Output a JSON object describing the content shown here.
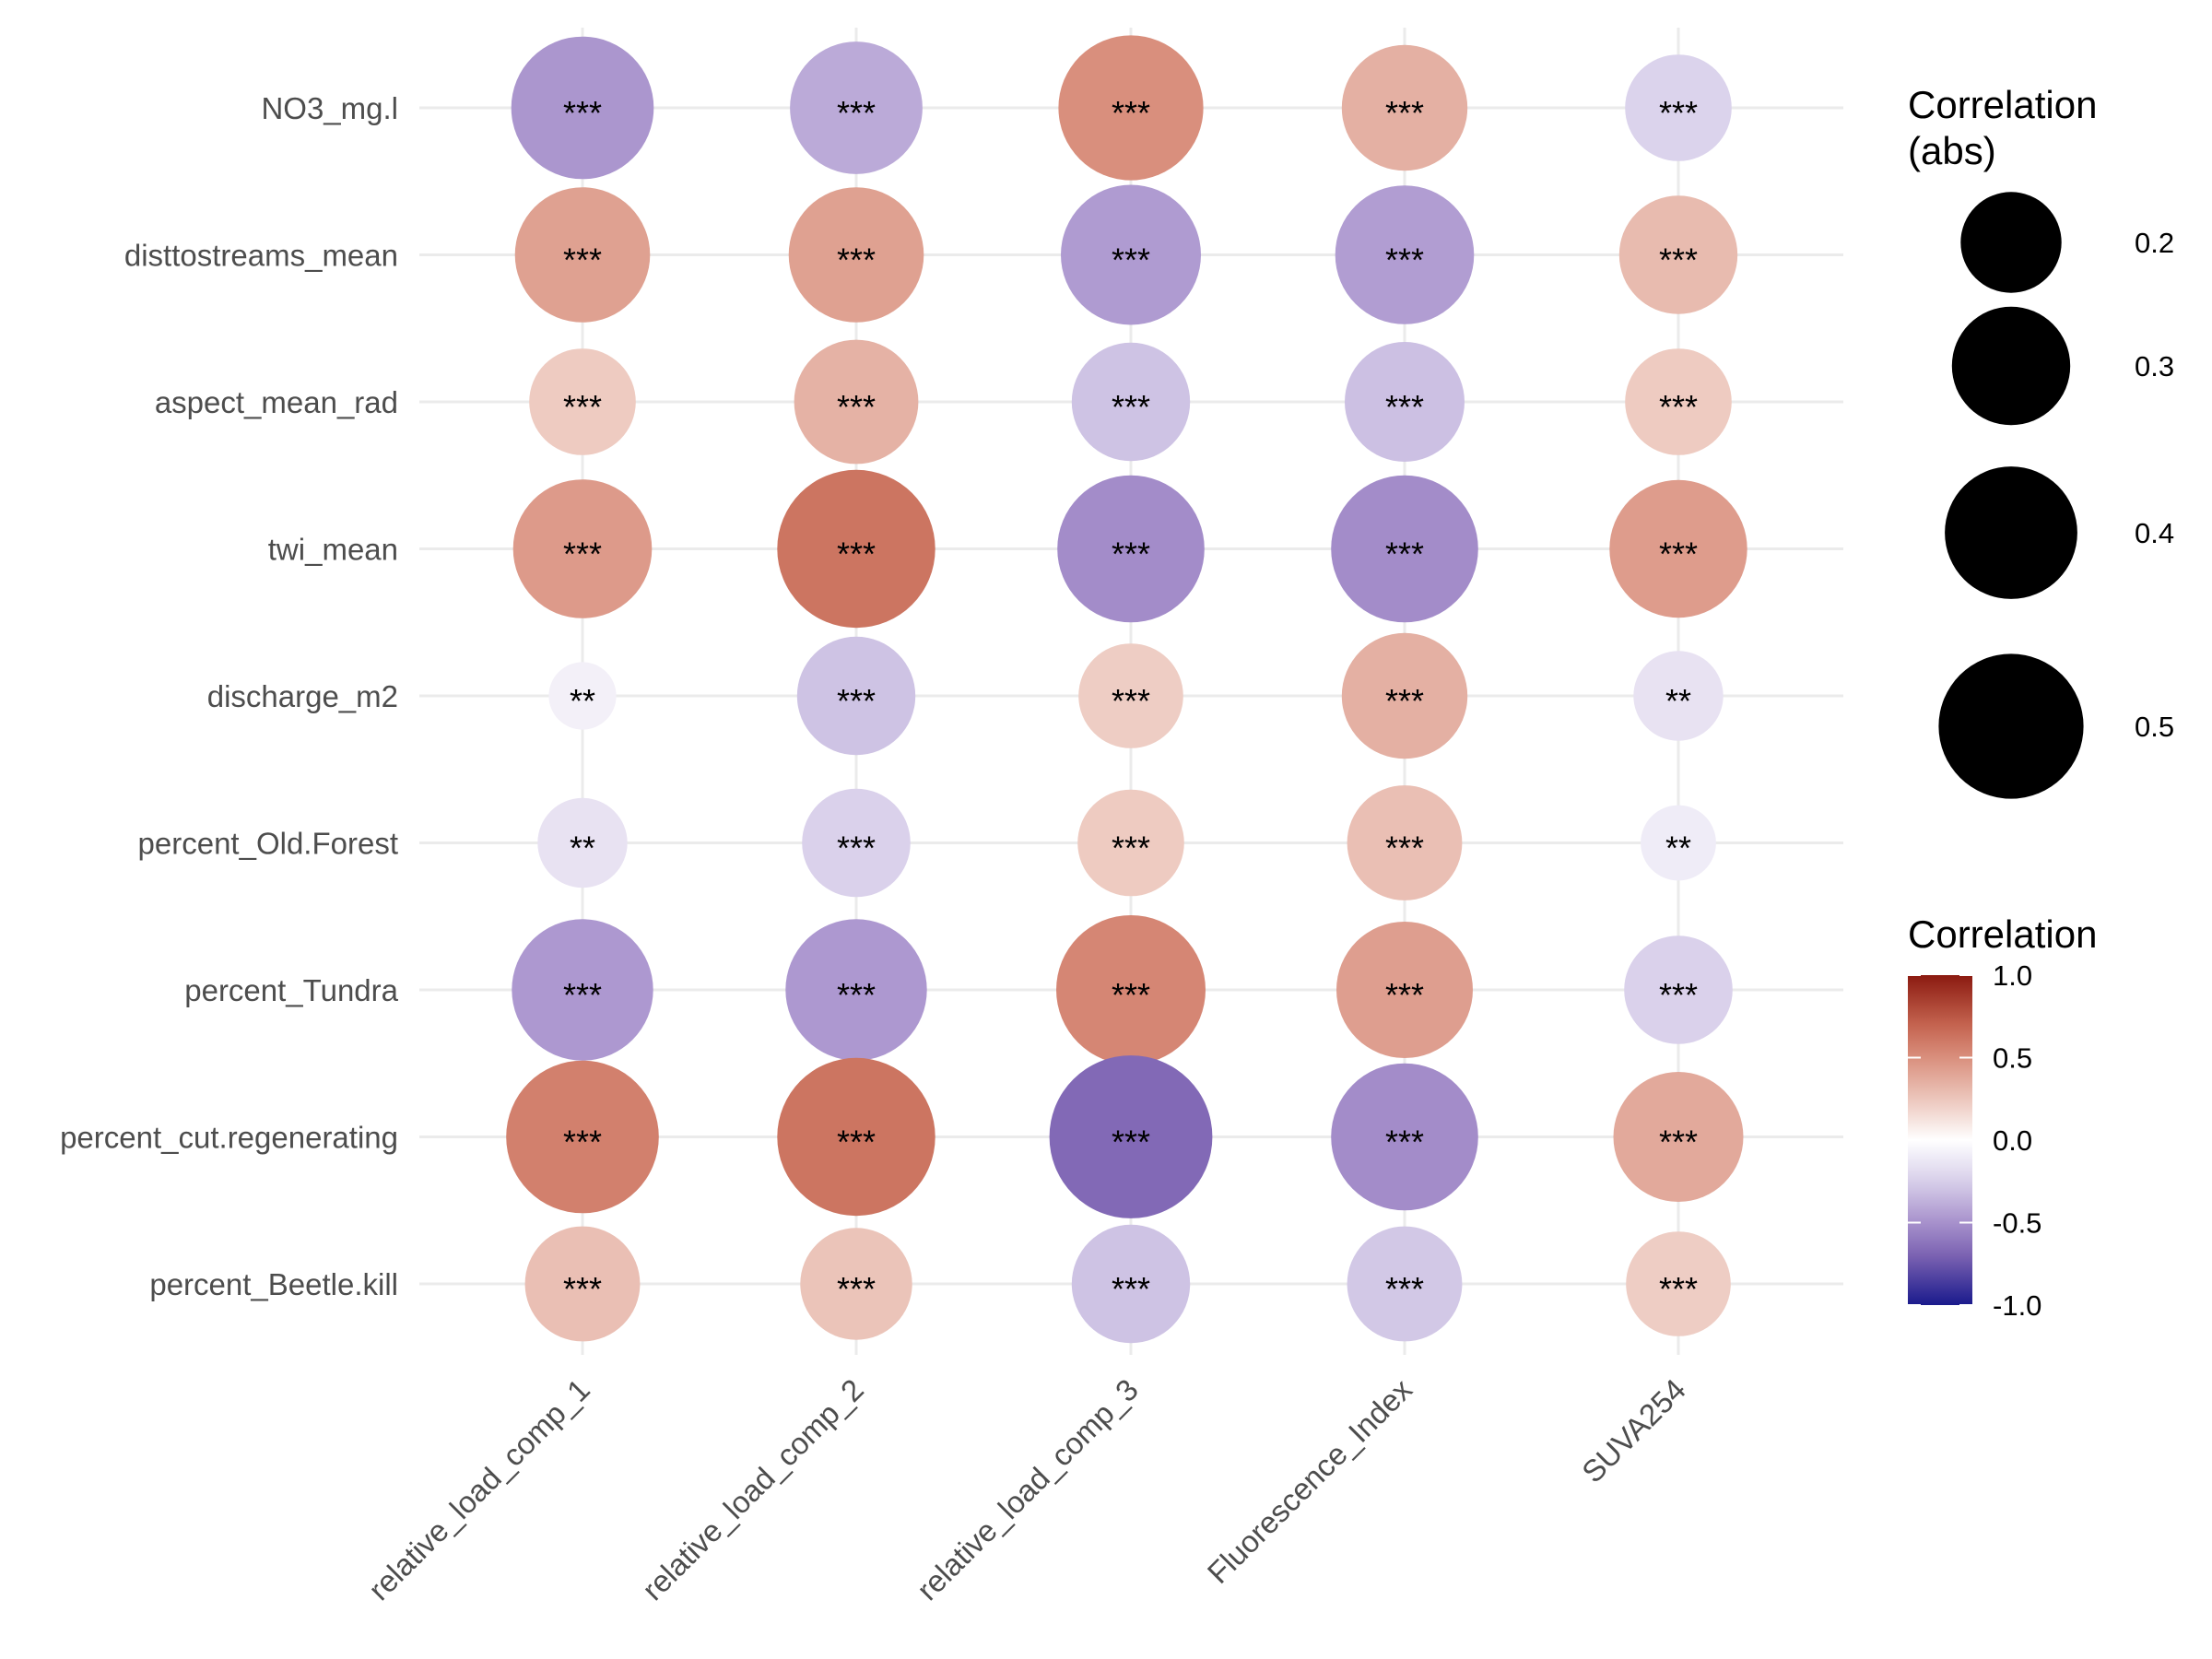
{
  "chart_data": {
    "type": "bubble-heatmap",
    "columns": [
      "relative_load_comp_1",
      "relative_load_comp_2",
      "relative_load_comp_3",
      "Fluorescence_Index",
      "SUVA254"
    ],
    "rows": [
      "NO3_mg.l",
      "disttostreams_mean",
      "aspect_mean_rad",
      "twi_mean",
      "discharge_m2",
      "percent_Old.Forest",
      "percent_Tundra",
      "percent_cut.regenerating",
      "percent_Beetle.kill"
    ],
    "cells": [
      [
        {
          "r": -0.48,
          "sig": "***"
        },
        {
          "r": -0.4,
          "sig": "***"
        },
        {
          "r": 0.5,
          "sig": "***"
        },
        {
          "r": 0.35,
          "sig": "***"
        },
        {
          "r": -0.23,
          "sig": "***"
        }
      ],
      [
        {
          "r": 0.42,
          "sig": "***"
        },
        {
          "r": 0.42,
          "sig": "***"
        },
        {
          "r": -0.46,
          "sig": "***"
        },
        {
          "r": -0.45,
          "sig": "***"
        },
        {
          "r": 0.3,
          "sig": "***"
        }
      ],
      [
        {
          "r": 0.23,
          "sig": "***"
        },
        {
          "r": 0.34,
          "sig": "***"
        },
        {
          "r": -0.3,
          "sig": "***"
        },
        {
          "r": -0.31,
          "sig": "***"
        },
        {
          "r": 0.23,
          "sig": "***"
        }
      ],
      [
        {
          "r": 0.45,
          "sig": "***"
        },
        {
          "r": 0.62,
          "sig": "***"
        },
        {
          "r": -0.52,
          "sig": "***"
        },
        {
          "r": -0.52,
          "sig": "***"
        },
        {
          "r": 0.44,
          "sig": "***"
        }
      ],
      [
        {
          "r": -0.08,
          "sig": "**"
        },
        {
          "r": -0.3,
          "sig": "***"
        },
        {
          "r": 0.22,
          "sig": "***"
        },
        {
          "r": 0.35,
          "sig": "***"
        },
        {
          "r": -0.15,
          "sig": "**"
        }
      ],
      [
        {
          "r": -0.15,
          "sig": "**"
        },
        {
          "r": -0.24,
          "sig": "***"
        },
        {
          "r": 0.23,
          "sig": "***"
        },
        {
          "r": 0.28,
          "sig": "***"
        },
        {
          "r": -0.1,
          "sig": "**"
        }
      ],
      [
        {
          "r": -0.47,
          "sig": "***"
        },
        {
          "r": -0.47,
          "sig": "***"
        },
        {
          "r": 0.54,
          "sig": "***"
        },
        {
          "r": 0.43,
          "sig": "***"
        },
        {
          "r": -0.24,
          "sig": "***"
        }
      ],
      [
        {
          "r": 0.57,
          "sig": "***"
        },
        {
          "r": 0.62,
          "sig": "***"
        },
        {
          "r": -0.67,
          "sig": "***"
        },
        {
          "r": -0.52,
          "sig": "***"
        },
        {
          "r": 0.38,
          "sig": "***"
        }
      ],
      [
        {
          "r": 0.28,
          "sig": "***"
        },
        {
          "r": 0.26,
          "sig": "***"
        },
        {
          "r": -0.3,
          "sig": "***"
        },
        {
          "r": -0.28,
          "sig": "***"
        },
        {
          "r": 0.22,
          "sig": "***"
        }
      ]
    ],
    "size_legend": {
      "title_lines": [
        "Correlation",
        "(abs)"
      ],
      "values": [
        0.2,
        0.3,
        0.4,
        0.5
      ],
      "labels": [
        "0.2",
        "0.3",
        "0.4",
        "0.5"
      ]
    },
    "color_legend": {
      "title": "Correlation",
      "range": [
        -1.0,
        1.0
      ],
      "tick_values": [
        1.0,
        0.5,
        0.0,
        -0.5,
        -1.0
      ],
      "tick_labels": [
        "1.0",
        "0.5",
        "0.0",
        "-0.5",
        "-1.0"
      ],
      "low_color": "#1a1a8c",
      "mid_color": "#ffffff",
      "high_color": "#8b1a10"
    },
    "grid": true,
    "legend_position": "right"
  }
}
